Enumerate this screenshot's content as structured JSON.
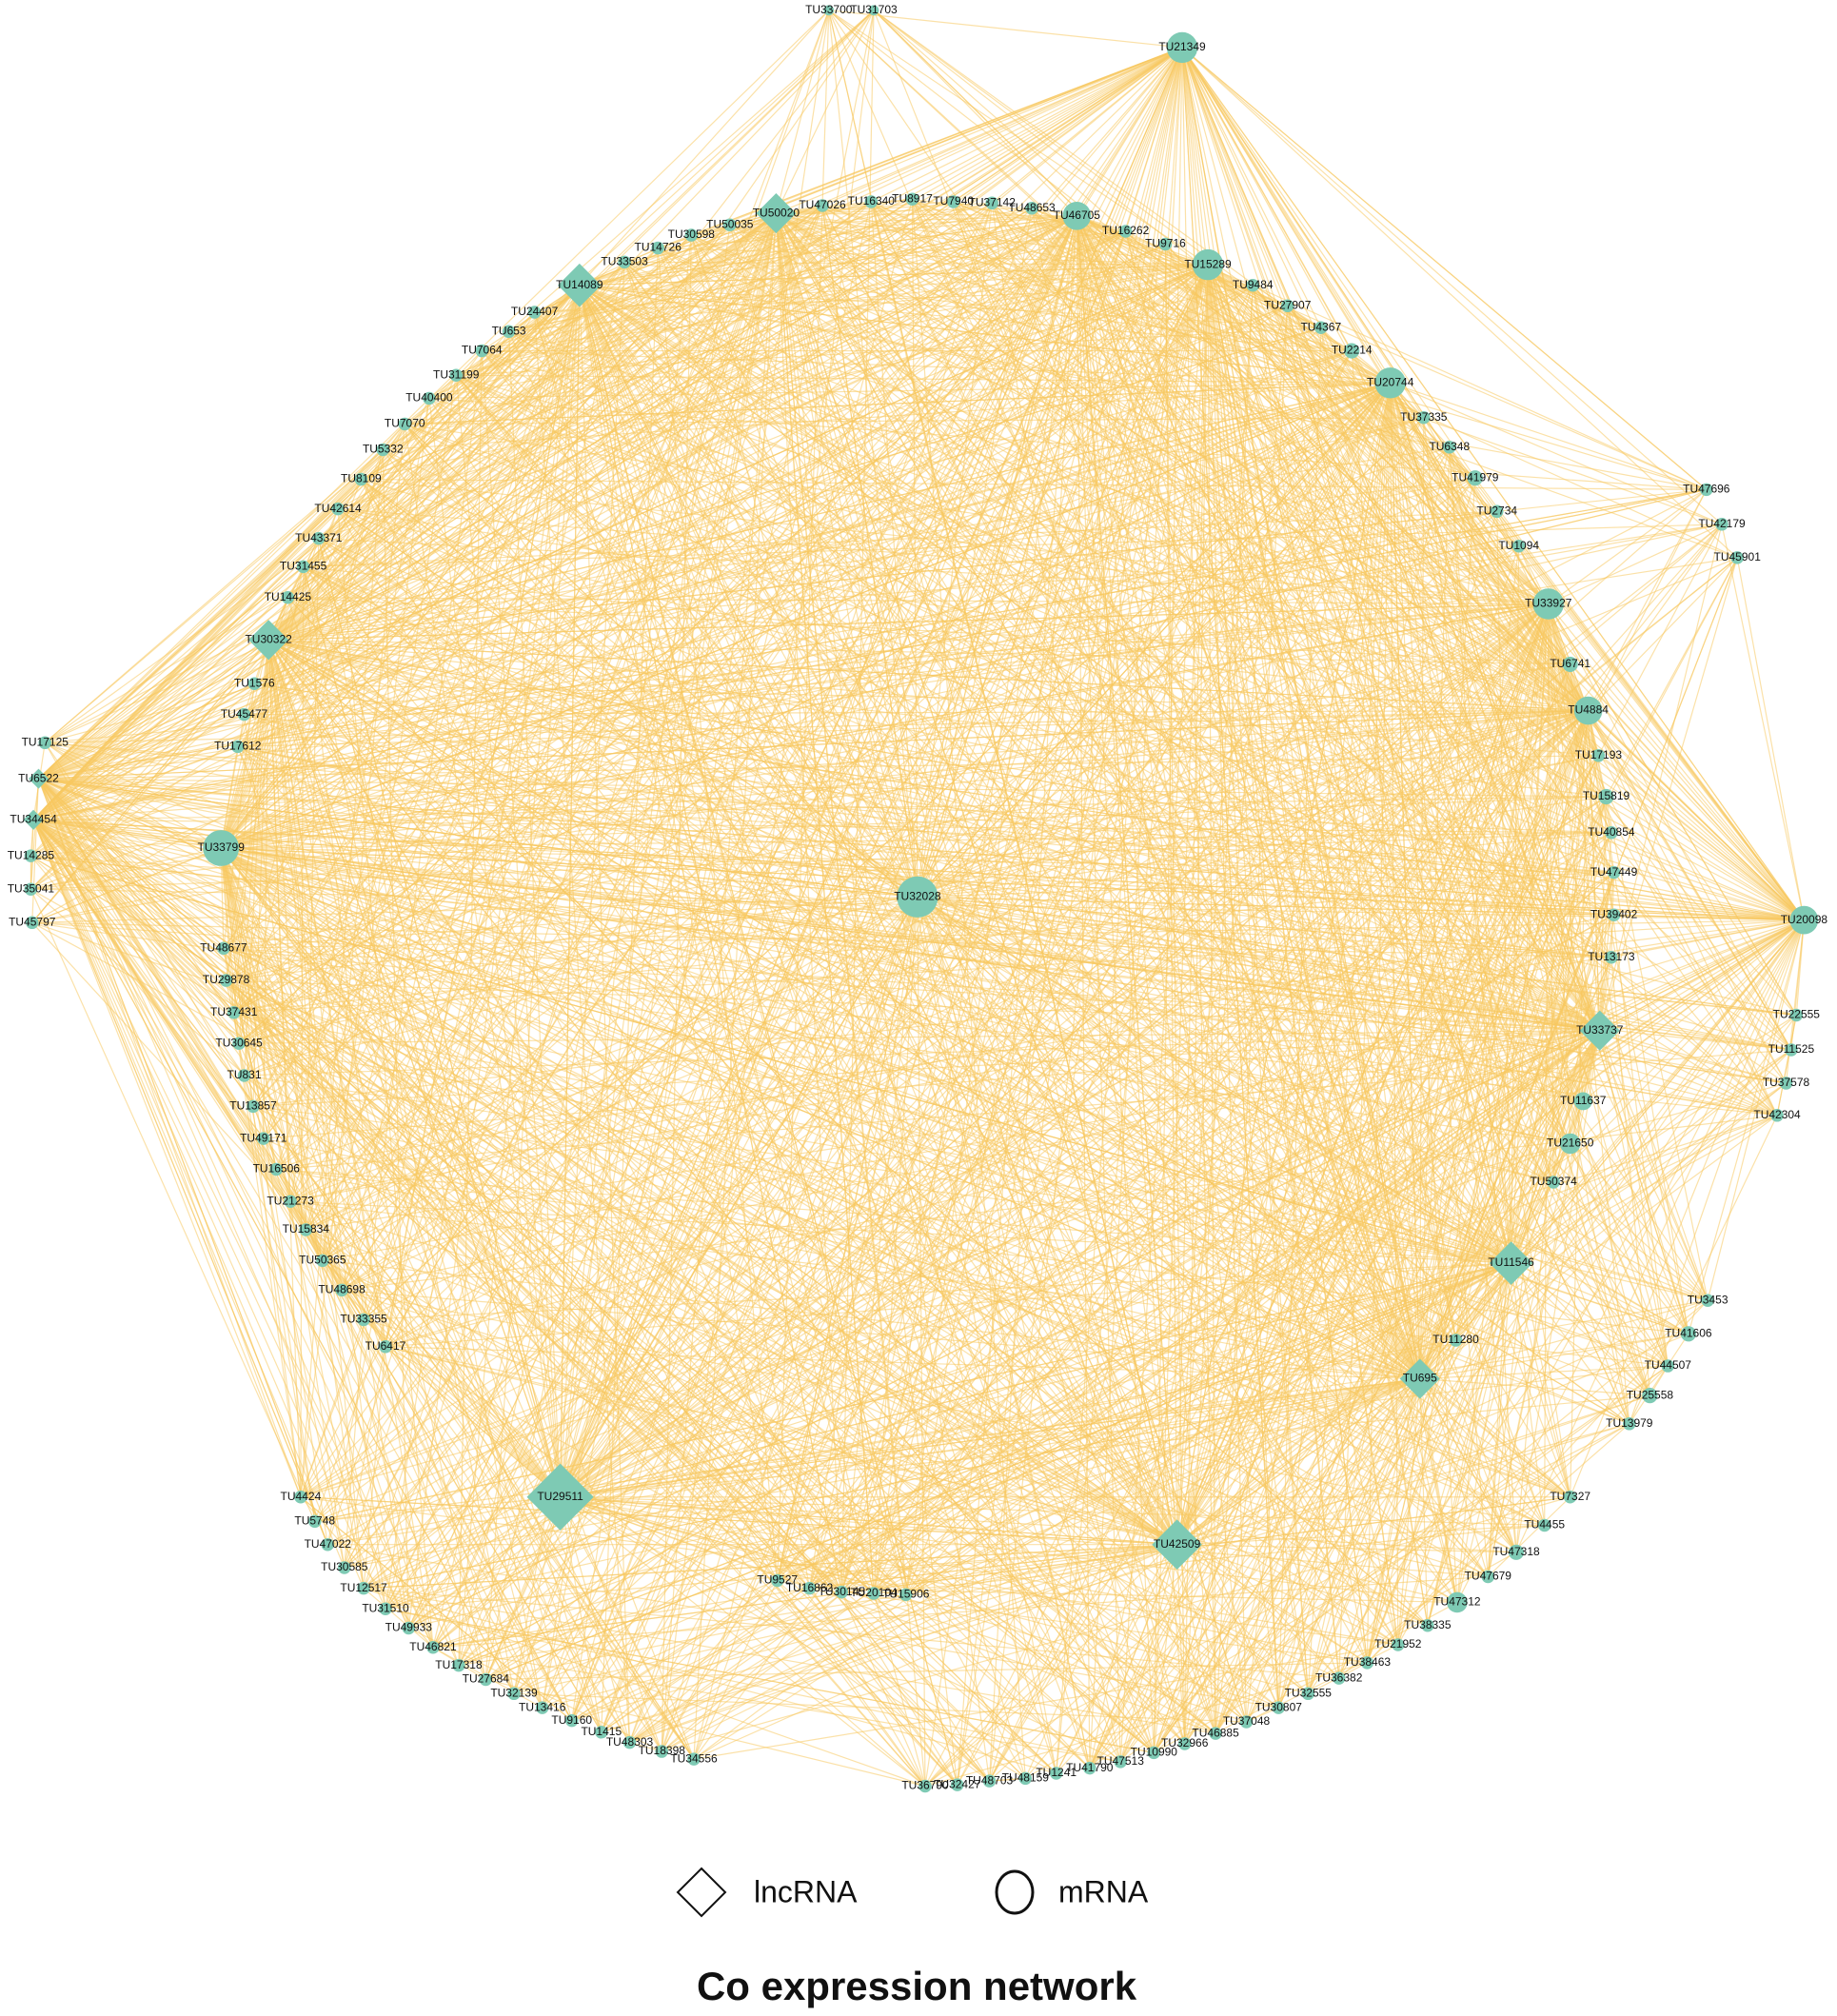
{
  "nodes": [
    {
      "label": "TU33700",
      "shape": "circle"
    },
    {
      "label": "TU31703",
      "shape": "circle"
    },
    {
      "label": "TU21349",
      "shape": "circle"
    },
    {
      "label": "TU47026",
      "shape": "circle"
    },
    {
      "label": "TU16340",
      "shape": "circle"
    },
    {
      "label": "TU8917",
      "shape": "circle"
    },
    {
      "label": "TU7940",
      "shape": "circle"
    },
    {
      "label": "TU37142",
      "shape": "circle"
    },
    {
      "label": "TU48653",
      "shape": "circle"
    },
    {
      "label": "TU46705",
      "shape": "circle"
    },
    {
      "label": "TU16262",
      "shape": "circle"
    },
    {
      "label": "TU9716",
      "shape": "circle"
    },
    {
      "label": "TU15289",
      "shape": "circle"
    },
    {
      "label": "TU9484",
      "shape": "circle"
    },
    {
      "label": "TU27907",
      "shape": "circle"
    },
    {
      "label": "TU4367",
      "shape": "circle"
    },
    {
      "label": "TU2214",
      "shape": "circle"
    },
    {
      "label": "TU20744",
      "shape": "circle"
    },
    {
      "label": "TU37335",
      "shape": "circle"
    },
    {
      "label": "TU6348",
      "shape": "circle"
    },
    {
      "label": "TU41979",
      "shape": "circle"
    },
    {
      "label": "TU2734",
      "shape": "circle"
    },
    {
      "label": "TU1094",
      "shape": "circle"
    },
    {
      "label": "TU33927",
      "shape": "circle"
    },
    {
      "label": "TU6741",
      "shape": "circle"
    },
    {
      "label": "TU4884",
      "shape": "circle"
    },
    {
      "label": "TU17193",
      "shape": "circle"
    },
    {
      "label": "TU15819",
      "shape": "circle"
    },
    {
      "label": "TU40854",
      "shape": "circle"
    },
    {
      "label": "TU47449",
      "shape": "circle"
    },
    {
      "label": "TU39402",
      "shape": "circle"
    },
    {
      "label": "TU13173",
      "shape": "circle"
    },
    {
      "label": "TU33737",
      "shape": "diamond"
    },
    {
      "label": "TU11637",
      "shape": "circle"
    },
    {
      "label": "TU21650",
      "shape": "circle"
    },
    {
      "label": "TU50374",
      "shape": "circle"
    },
    {
      "label": "TU11546",
      "shape": "diamond"
    },
    {
      "label": "TU11280",
      "shape": "circle"
    },
    {
      "label": "TU695",
      "shape": "diamond"
    },
    {
      "label": "TU42509",
      "shape": "diamond"
    },
    {
      "label": "TU29511",
      "shape": "diamond"
    },
    {
      "label": "TU32028",
      "shape": "circle"
    },
    {
      "label": "TU50020",
      "shape": "diamond"
    },
    {
      "label": "TU50035",
      "shape": "circle"
    },
    {
      "label": "TU30598",
      "shape": "circle"
    },
    {
      "label": "TU14726",
      "shape": "circle"
    },
    {
      "label": "TU33503",
      "shape": "circle"
    },
    {
      "label": "TU14089",
      "shape": "diamond"
    },
    {
      "label": "TU24407",
      "shape": "circle"
    },
    {
      "label": "TU653",
      "shape": "circle"
    },
    {
      "label": "TU7064",
      "shape": "circle"
    },
    {
      "label": "TU31199",
      "shape": "circle"
    },
    {
      "label": "TU40400",
      "shape": "circle"
    },
    {
      "label": "TU7070",
      "shape": "circle"
    },
    {
      "label": "TU5332",
      "shape": "circle"
    },
    {
      "label": "TU8109",
      "shape": "circle"
    },
    {
      "label": "TU42614",
      "shape": "circle"
    },
    {
      "label": "TU43371",
      "shape": "circle"
    },
    {
      "label": "TU31455",
      "shape": "circle"
    },
    {
      "label": "TU14425",
      "shape": "circle"
    },
    {
      "label": "TU30322",
      "shape": "diamond"
    },
    {
      "label": "TU1576",
      "shape": "circle"
    },
    {
      "label": "TU45477",
      "shape": "circle"
    },
    {
      "label": "TU17612",
      "shape": "circle"
    },
    {
      "label": "TU33799",
      "shape": "circle"
    },
    {
      "label": "TU48677",
      "shape": "circle"
    },
    {
      "label": "TU29878",
      "shape": "circle"
    },
    {
      "label": "TU37431",
      "shape": "circle"
    },
    {
      "label": "TU30645",
      "shape": "circle"
    },
    {
      "label": "TU831",
      "shape": "circle"
    },
    {
      "label": "TU13857",
      "shape": "circle"
    },
    {
      "label": "TU49171",
      "shape": "circle"
    },
    {
      "label": "TU16506",
      "shape": "circle"
    },
    {
      "label": "TU21273",
      "shape": "circle"
    },
    {
      "label": "TU15834",
      "shape": "circle"
    },
    {
      "label": "TU50365",
      "shape": "circle"
    },
    {
      "label": "TU48698",
      "shape": "circle"
    },
    {
      "label": "TU33355",
      "shape": "circle"
    },
    {
      "label": "TU6417",
      "shape": "circle"
    },
    {
      "label": "TU17125",
      "shape": "circle"
    },
    {
      "label": "TU6522",
      "shape": "diamond"
    },
    {
      "label": "TU34454",
      "shape": "diamond"
    },
    {
      "label": "TU14285",
      "shape": "circle"
    },
    {
      "label": "TU35041",
      "shape": "circle"
    },
    {
      "label": "TU45797",
      "shape": "circle"
    },
    {
      "label": "TU47696",
      "shape": "circle"
    },
    {
      "label": "TU42179",
      "shape": "circle"
    },
    {
      "label": "TU45901",
      "shape": "circle"
    },
    {
      "label": "TU20098",
      "shape": "circle"
    },
    {
      "label": "TU22555",
      "shape": "circle"
    },
    {
      "label": "TU11525",
      "shape": "circle"
    },
    {
      "label": "TU37578",
      "shape": "circle"
    },
    {
      "label": "TU42304",
      "shape": "circle"
    },
    {
      "label": "TU3453",
      "shape": "circle"
    },
    {
      "label": "TU41606",
      "shape": "circle"
    },
    {
      "label": "TU44507",
      "shape": "circle"
    },
    {
      "label": "TU25558",
      "shape": "circle"
    },
    {
      "label": "TU13979",
      "shape": "circle"
    },
    {
      "label": "TU7327",
      "shape": "circle"
    },
    {
      "label": "TU4455",
      "shape": "circle"
    },
    {
      "label": "TU47318",
      "shape": "circle"
    },
    {
      "label": "TU47679",
      "shape": "circle"
    },
    {
      "label": "TU47312",
      "shape": "circle"
    },
    {
      "label": "TU38335",
      "shape": "circle"
    },
    {
      "label": "TU21952",
      "shape": "circle"
    },
    {
      "label": "TU38463",
      "shape": "circle"
    },
    {
      "label": "TU36382",
      "shape": "circle"
    },
    {
      "label": "TU32555",
      "shape": "circle"
    },
    {
      "label": "TU30807",
      "shape": "circle"
    },
    {
      "label": "TU37048",
      "shape": "circle"
    },
    {
      "label": "TU46885",
      "shape": "circle"
    },
    {
      "label": "TU32966",
      "shape": "circle"
    },
    {
      "label": "TU10990",
      "shape": "circle"
    },
    {
      "label": "TU47513",
      "shape": "circle"
    },
    {
      "label": "TU41790",
      "shape": "circle"
    },
    {
      "label": "TU1241",
      "shape": "circle"
    },
    {
      "label": "TU48159",
      "shape": "circle"
    },
    {
      "label": "TU48703",
      "shape": "circle"
    },
    {
      "label": "TU32427",
      "shape": "circle"
    },
    {
      "label": "TU36790",
      "shape": "circle"
    },
    {
      "label": "TU4424",
      "shape": "circle"
    },
    {
      "label": "TU5748",
      "shape": "circle"
    },
    {
      "label": "TU47022",
      "shape": "circle"
    },
    {
      "label": "TU30585",
      "shape": "circle"
    },
    {
      "label": "TU12517",
      "shape": "circle"
    },
    {
      "label": "TU31510",
      "shape": "circle"
    },
    {
      "label": "TU49933",
      "shape": "circle"
    },
    {
      "label": "TU46821",
      "shape": "circle"
    },
    {
      "label": "TU17318",
      "shape": "circle"
    },
    {
      "label": "TU27684",
      "shape": "circle"
    },
    {
      "label": "TU32139",
      "shape": "circle"
    },
    {
      "label": "TU13416",
      "shape": "circle"
    },
    {
      "label": "TU9160",
      "shape": "circle"
    },
    {
      "label": "TU1415",
      "shape": "circle"
    },
    {
      "label": "TU48303",
      "shape": "circle"
    },
    {
      "label": "TU18398",
      "shape": "circle"
    },
    {
      "label": "TU34556",
      "shape": "circle"
    },
    {
      "label": "TU9527",
      "shape": "circle"
    },
    {
      "label": "TU16862",
      "shape": "circle"
    },
    {
      "label": "TU30145",
      "shape": "circle"
    },
    {
      "label": "TU20104",
      "shape": "circle"
    },
    {
      "label": "TU15906",
      "shape": "circle"
    }
  ],
  "legend": [
    {
      "label": "lncRNA",
      "shape": "diamond"
    },
    {
      "label": "mRNA",
      "shape": "circle"
    }
  ],
  "title": "Co expression network"
}
